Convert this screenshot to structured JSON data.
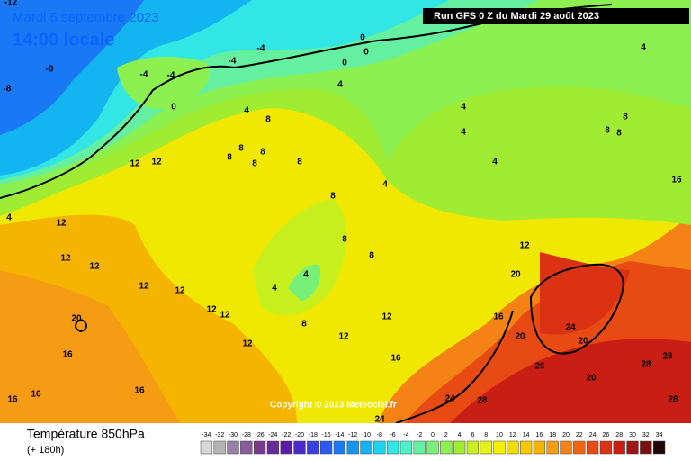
{
  "header": {
    "date": "Mardi 5 septembre 2023",
    "time": "14:00 locale",
    "run": "Run GFS 0 Z du Mardi 29 août 2023",
    "copyright": "Copyright © 2023 Meteociel.fr"
  },
  "footer": {
    "title": "Température 850hPa",
    "lead": "(+ 180h)"
  },
  "legend": {
    "values": [
      -34,
      -32,
      -30,
      -28,
      -26,
      -24,
      -22,
      -20,
      -18,
      -16,
      -14,
      -12,
      -10,
      -8,
      -6,
      -4,
      -2,
      0,
      2,
      4,
      6,
      8,
      10,
      12,
      14,
      16,
      18,
      20,
      22,
      24,
      26,
      28,
      30,
      32,
      34
    ],
    "colors": [
      "#d8d8d8",
      "#b4b4b4",
      "#9a7fa8",
      "#8a5a9a",
      "#7a3a8a",
      "#6a2a9a",
      "#5a1aaa",
      "#4a2ac8",
      "#3a40e0",
      "#2a5af0",
      "#1a78f5",
      "#1496f0",
      "#14b4f0",
      "#1ed2f0",
      "#32e6e6",
      "#50f0c8",
      "#64f0a0",
      "#78f078",
      "#8cf050",
      "#a0ec32",
      "#c8f01e",
      "#e6f01e",
      "#f5f000",
      "#f5dc00",
      "#f5c800",
      "#f5b400",
      "#f59c14",
      "#f58214",
      "#f06414",
      "#e84a14",
      "#dc3214",
      "#c81e14",
      "#a01414",
      "#781010",
      "#200808"
    ]
  },
  "contour_labels": [
    -12,
    -8,
    -8,
    -4,
    -4,
    -4,
    -4,
    0,
    0,
    0,
    0,
    4,
    4,
    4,
    4,
    4,
    4,
    4,
    4,
    4,
    8,
    8,
    8,
    8,
    8,
    8,
    8,
    8,
    8,
    8,
    8,
    8,
    8,
    12,
    12,
    12,
    12,
    12,
    12,
    12,
    12,
    12,
    12,
    12,
    12,
    12,
    16,
    16,
    16,
    16,
    16,
    16,
    16,
    20,
    20,
    20,
    20,
    20,
    20,
    24,
    24,
    24,
    28,
    28,
    28,
    28,
    4
  ]
}
